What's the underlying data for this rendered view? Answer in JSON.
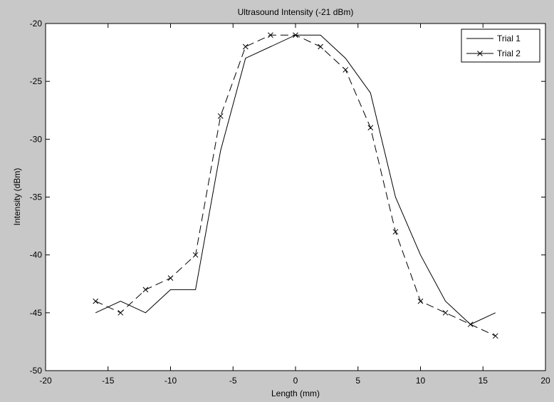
{
  "chart_data": {
    "type": "line",
    "title": "Ultrasound Intensity (-21 dBm)",
    "xlabel": "Length (mm)",
    "ylabel": "Intensity (dBm)",
    "xlim": [
      -20,
      20
    ],
    "ylim": [
      -50,
      -20
    ],
    "xticks": [
      "-20",
      "-15",
      "-10",
      "-5",
      "0",
      "5",
      "10",
      "15",
      "20"
    ],
    "yticks": [
      "-20",
      "-25",
      "-30",
      "-35",
      "-40",
      "-45",
      "-50"
    ],
    "grid": false,
    "legend_position": "top-right",
    "series": [
      {
        "name": "Trial 1",
        "style": "solid",
        "marker": "none",
        "color": "#000000",
        "x": [
          -16,
          -14,
          -12,
          -10,
          -8,
          -6,
          -4,
          -2,
          0,
          2,
          4,
          6,
          8,
          10,
          12,
          14,
          16
        ],
        "y": [
          -45,
          -44,
          -45,
          -43,
          -43,
          -31,
          -23,
          -22,
          -21,
          -21,
          -23,
          -26,
          -35,
          -40,
          -44,
          -46,
          -45
        ]
      },
      {
        "name": "Trial 2",
        "style": "dashed",
        "marker": "x",
        "color": "#000000",
        "x": [
          -16,
          -14,
          -12,
          -10,
          -8,
          -6,
          -4,
          -2,
          0,
          2,
          4,
          6,
          8,
          10,
          12,
          14,
          16
        ],
        "y": [
          -44,
          -45,
          -43,
          -42,
          -40,
          -28,
          -22,
          -21,
          -21,
          -22,
          -24,
          -29,
          -38,
          -44,
          -45,
          -46,
          -47
        ]
      }
    ]
  }
}
